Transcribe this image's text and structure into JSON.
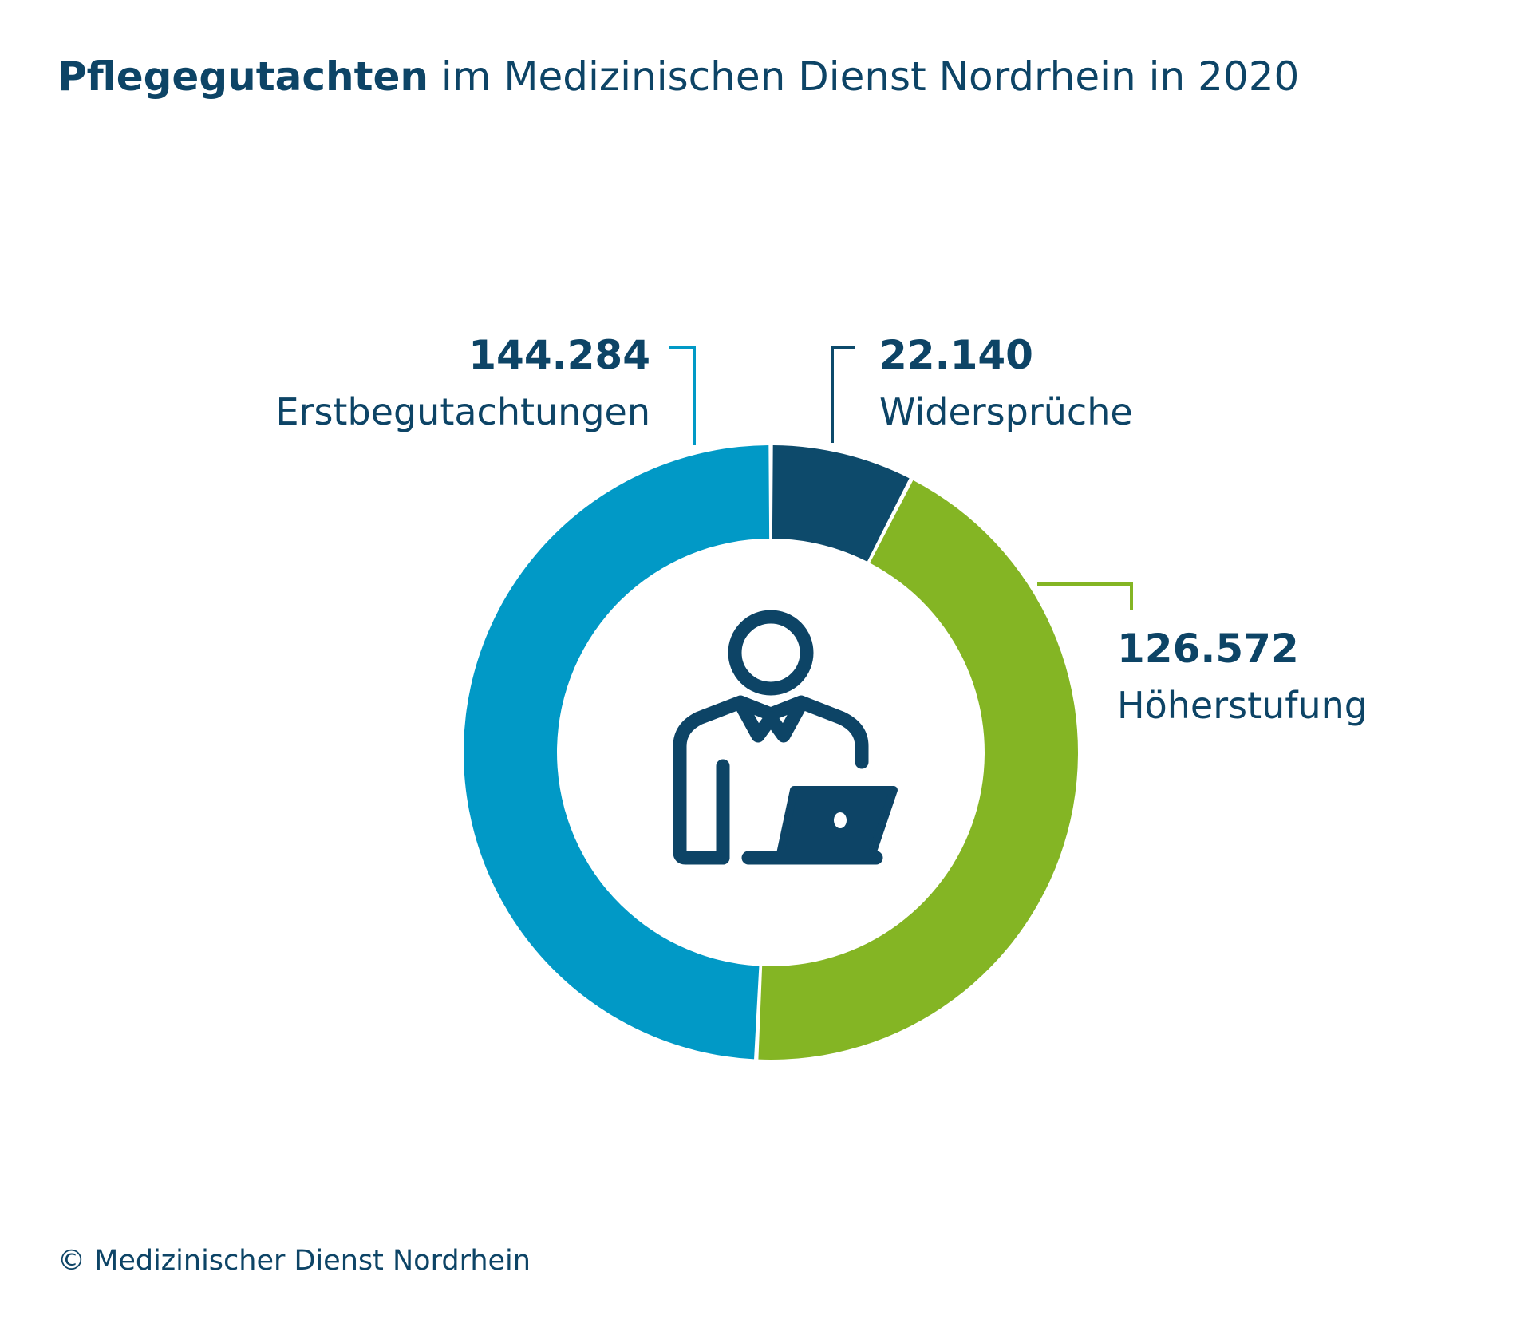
{
  "title": {
    "bold": "Pflegegutachten",
    "rest": " im Medizinischen Dienst Nordrhein in 2020"
  },
  "footer": "© Medizinischer Dienst Nordrhein",
  "colors": {
    "text": "#0d4466",
    "widersprueche": "#0d4a6b",
    "hoeherstufung": "#84b524",
    "erstbegutachtungen": "#0199c6"
  },
  "center_icon": "person-at-laptop-icon",
  "chart_data": {
    "type": "pie",
    "donut": true,
    "start": "top, clockwise",
    "segments": [
      {
        "label": "Widersprüche",
        "value": 22140,
        "value_label": "22.140",
        "color": "#0d4a6b"
      },
      {
        "label": "Höherstufung",
        "value": 126572,
        "value_label": "126.572",
        "color": "#84b524"
      },
      {
        "label": "Erstbegutachtungen",
        "value": 144284,
        "value_label": "144.284",
        "color": "#0199c6"
      }
    ]
  }
}
